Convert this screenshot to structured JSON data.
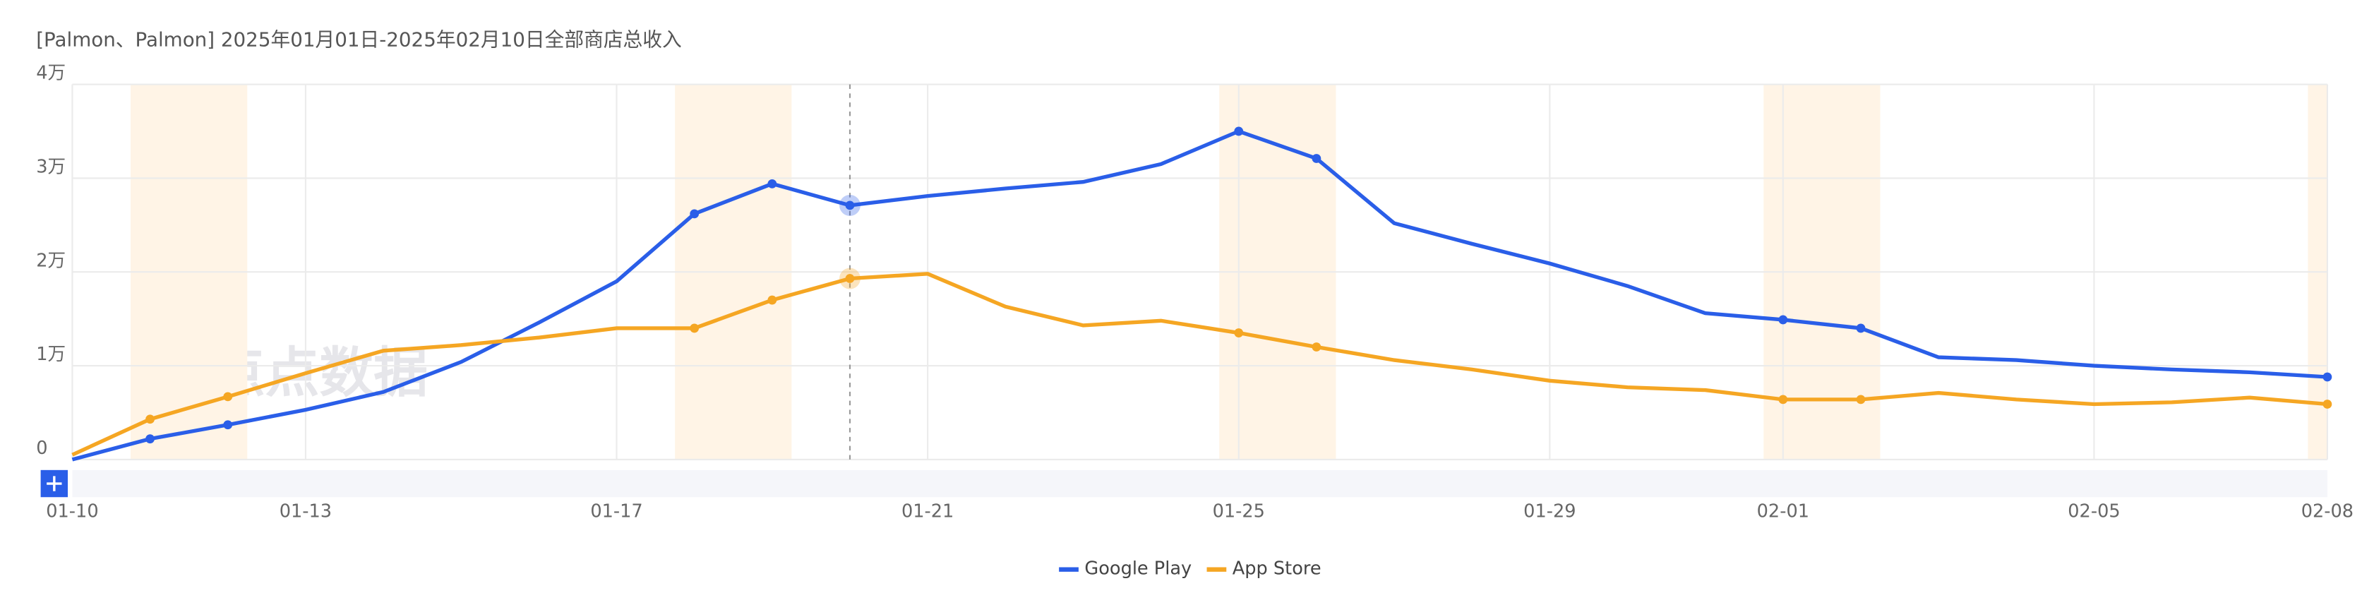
{
  "chart_data": {
    "type": "line",
    "title": "[Palmon、Palmon] 2025年01月01日-2025年02月10日全部商店总收入",
    "watermark": "点点数据",
    "categories": [
      "01-10",
      null,
      null,
      "01-13",
      null,
      null,
      null,
      "01-17",
      null,
      null,
      null,
      "01-21",
      null,
      null,
      null,
      "01-25",
      null,
      null,
      null,
      "01-29",
      null,
      null,
      "02-01",
      null,
      null,
      null,
      "02-05",
      null,
      null,
      "02-08"
    ],
    "series": [
      {
        "name": "Google Play",
        "color": "#2a5ee8",
        "values": [
          0,
          2200,
          3700,
          5300,
          7200,
          10400,
          14600,
          19000,
          26200,
          29400,
          27100,
          28100,
          28900,
          29600,
          31500,
          35000,
          32100,
          25200,
          23000,
          20900,
          18500,
          15600,
          14900,
          14000,
          10900,
          10600,
          10000,
          9600,
          9300,
          8800
        ]
      },
      {
        "name": "App Store",
        "color": "#f5a623",
        "values": [
          500,
          4300,
          6700,
          9200,
          11600,
          12200,
          13000,
          14000,
          14000,
          17000,
          19300,
          19800,
          16300,
          14300,
          14800,
          13500,
          12000,
          10600,
          9600,
          8400,
          7700,
          7400,
          6400,
          6400,
          7100,
          6400,
          5900,
          6100,
          6600,
          5900
        ]
      }
    ],
    "ylim": [
      0,
      40000
    ],
    "yticks": [
      0,
      {
        "value": 10000,
        "label": "1万"
      },
      {
        "value": 20000,
        "label": "2万"
      },
      {
        "value": 30000,
        "label": "3万"
      },
      {
        "value": 40000,
        "label": "4万"
      }
    ],
    "grid": true,
    "legend": "bottom"
  }
}
